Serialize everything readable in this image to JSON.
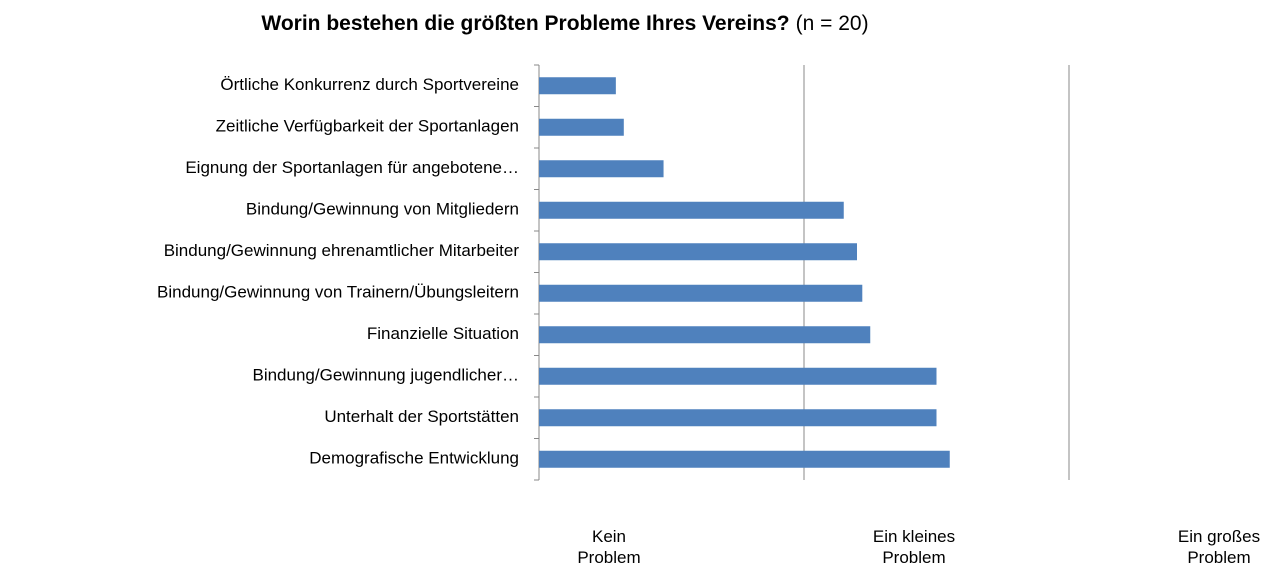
{
  "chart_data": {
    "type": "barh",
    "title": "Worin bestehen die größten Probleme Ihres Vereins?",
    "subtitle": "(n = 20)",
    "categories": [
      "Örtliche Konkurrenz durch Sportvereine",
      "Zeitliche Verfügbarkeit der Sportanlagen",
      "Eignung der Sportanlagen für angebotene…",
      "Bindung/Gewinnung von Mitgliedern",
      "Bindung/Gewinnung ehrenamtlicher Mitarbeiter",
      "Bindung/Gewinnung von Trainern/Übungsleitern",
      "Finanzielle Situation",
      "Bindung/Gewinnung jugendlicher…",
      "Unterhalt der Sportstätten",
      "Demografische Entwicklung"
    ],
    "values": [
      1.29,
      1.32,
      1.47,
      2.15,
      2.2,
      2.22,
      2.25,
      2.5,
      2.5,
      2.55
    ],
    "color": "#4f81bd",
    "xlim": [
      1,
      3
    ],
    "xticks": [
      {
        "value": 1,
        "label": "Kein Problem"
      },
      {
        "value": 2,
        "label": "Ein kleines Problem"
      },
      {
        "value": 3,
        "label": "Ein großes Problem"
      }
    ],
    "grid": true
  }
}
